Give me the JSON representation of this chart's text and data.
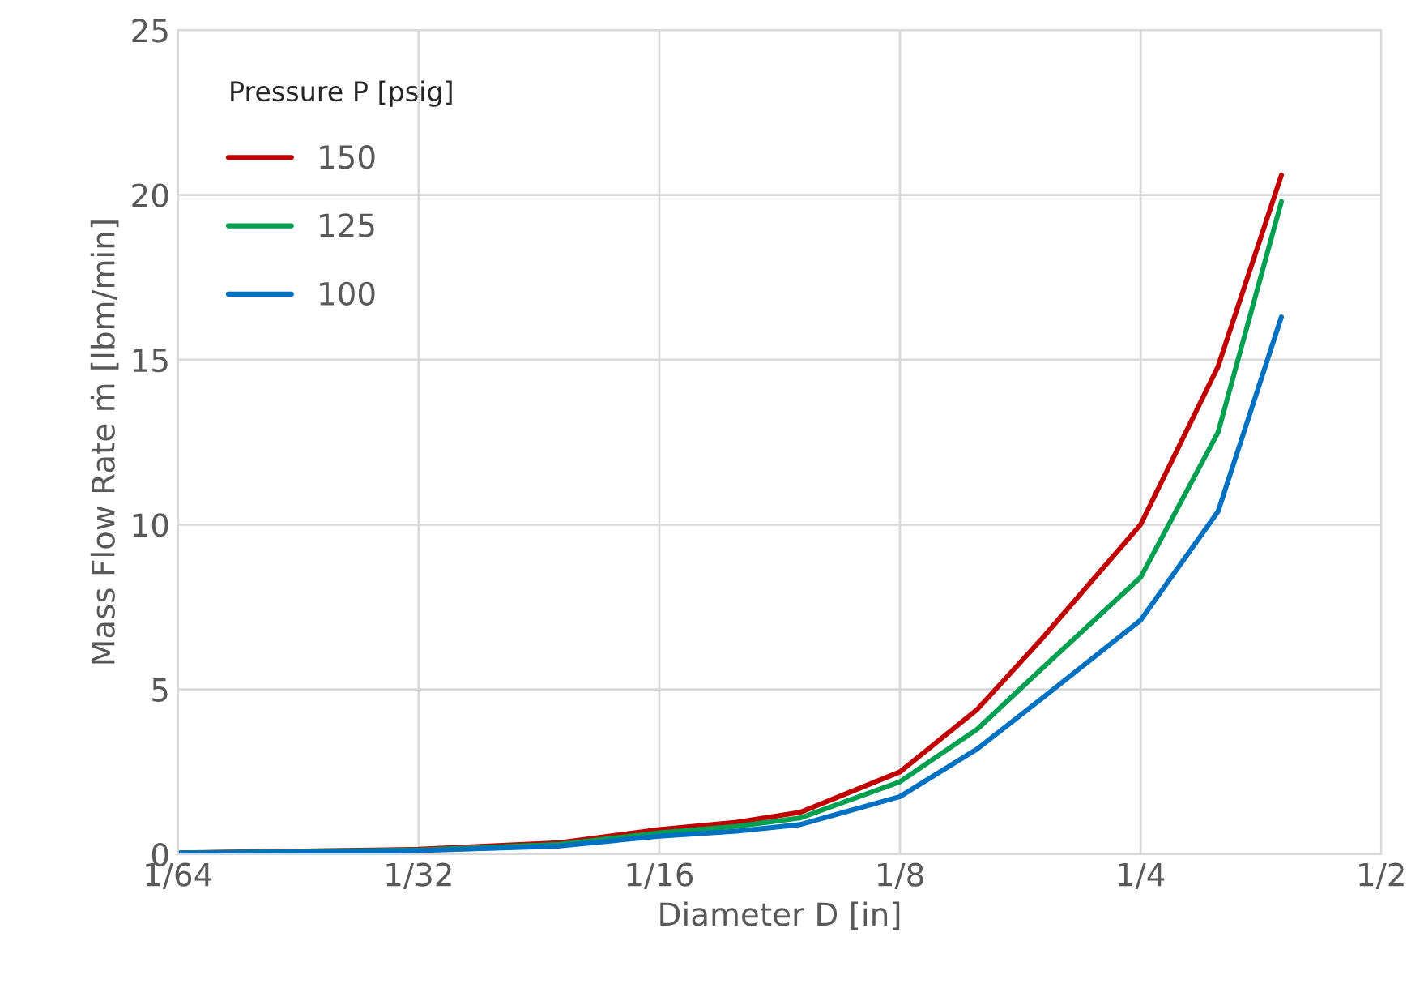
{
  "chart_data": {
    "type": "line",
    "xlabel": "Diameter D [in]",
    "ylabel": "Mass Flow Rate ṁ [lbm/min]",
    "legend_title": "Pressure P [psig]",
    "x": [
      0.015625,
      0.03125,
      0.046875,
      0.0625,
      0.078125,
      0.09375,
      0.125,
      0.15625,
      0.1875,
      0.25,
      0.3125,
      0.375
    ],
    "series": [
      {
        "name": "150",
        "color": "#c00000",
        "values": [
          0.04,
          0.15,
          0.35,
          0.75,
          0.97,
          1.27,
          2.5,
          4.4,
          6.5,
          10.0,
          14.8,
          20.6
        ]
      },
      {
        "name": "125",
        "color": "#00a050",
        "values": [
          0.035,
          0.13,
          0.3,
          0.65,
          0.85,
          1.1,
          2.2,
          3.8,
          5.6,
          8.4,
          12.8,
          19.8
        ]
      },
      {
        "name": "100",
        "color": "#0070c0",
        "values": [
          0.03,
          0.11,
          0.25,
          0.55,
          0.7,
          0.9,
          1.75,
          3.2,
          4.7,
          7.1,
          10.4,
          16.3
        ]
      }
    ],
    "log": "x",
    "xlim": [
      0.015625,
      0.5
    ],
    "xticks": [
      {
        "value": 0.015625,
        "label": "1/64"
      },
      {
        "value": 0.03125,
        "label": "1/32"
      },
      {
        "value": 0.0625,
        "label": "1/16"
      },
      {
        "value": 0.125,
        "label": "1/8"
      },
      {
        "value": 0.25,
        "label": "1/4"
      },
      {
        "value": 0.5,
        "label": "1/2"
      }
    ],
    "ylim": [
      0,
      25
    ],
    "yticks": [
      0,
      5,
      10,
      15,
      20,
      25
    ],
    "grid": true,
    "legend": "top left",
    "marker": "none",
    "line_style": "solid"
  }
}
